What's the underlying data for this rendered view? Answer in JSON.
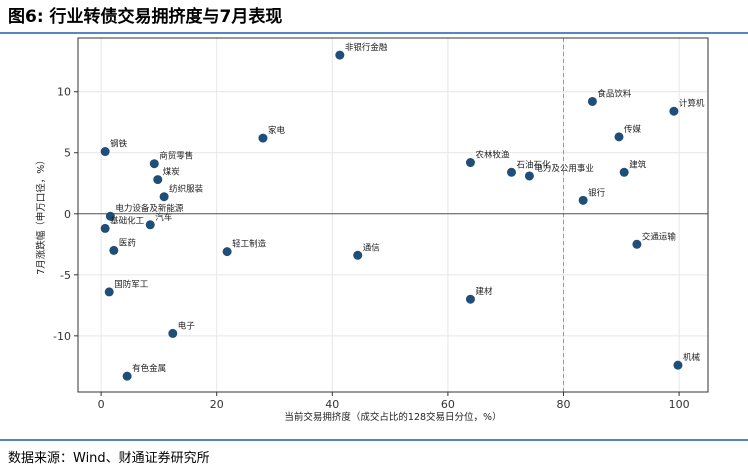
{
  "chart_data": {
    "type": "scatter",
    "title": "图6: 行业转债交易拥挤度与7月表现",
    "x_label": "当前交易拥挤度（成交占比的128交易日分位，%）",
    "y_label": "7月涨跌幅（申万口径，%）",
    "source": "数据来源：Wind、财通证券研究所",
    "labels": [
      "非银行金融",
      "食品饮料",
      "计算机",
      "家电",
      "传媒",
      "钢铁",
      "商贸零售",
      "农林牧渔",
      "石油石化",
      "电力及公用事业",
      "建筑",
      "煤炭",
      "纺织服装",
      "银行",
      "电力设备及新能源",
      "基础化工",
      "汽车",
      "交通运输",
      "医药",
      "轻工制造",
      "通信",
      "国防军工",
      "建材",
      "电子",
      "机械",
      "有色金属"
    ],
    "x": [
      41.3,
      85,
      99.1,
      28,
      89.6,
      0.7,
      9.2,
      63.9,
      71,
      74.1,
      90.5,
      9.8,
      10.9,
      83.4,
      1.6,
      0.7,
      8.5,
      92.7,
      2.2,
      21.8,
      44.4,
      1.4,
      63.9,
      12.4,
      99.8,
      4.5
    ],
    "values": [
      13.0,
      9.2,
      8.4,
      6.2,
      6.3,
      5.1,
      4.1,
      4.2,
      3.4,
      3.1,
      3.4,
      2.8,
      1.4,
      1.1,
      -0.2,
      -1.2,
      -0.9,
      -2.5,
      -3.0,
      -3.1,
      -3.4,
      -6.4,
      -7.0,
      -9.8,
      -12.4,
      -13.3
    ],
    "color": "#1f4e79",
    "xlim": [
      -4,
      105
    ],
    "xticks": [
      0,
      20,
      40,
      60,
      80,
      100
    ],
    "ylim": [
      -14.6,
      14.4
    ],
    "yticks": [
      -10,
      -5,
      0,
      5,
      10
    ],
    "grid": true,
    "vlines": [
      80
    ],
    "hlines": [
      0
    ]
  }
}
